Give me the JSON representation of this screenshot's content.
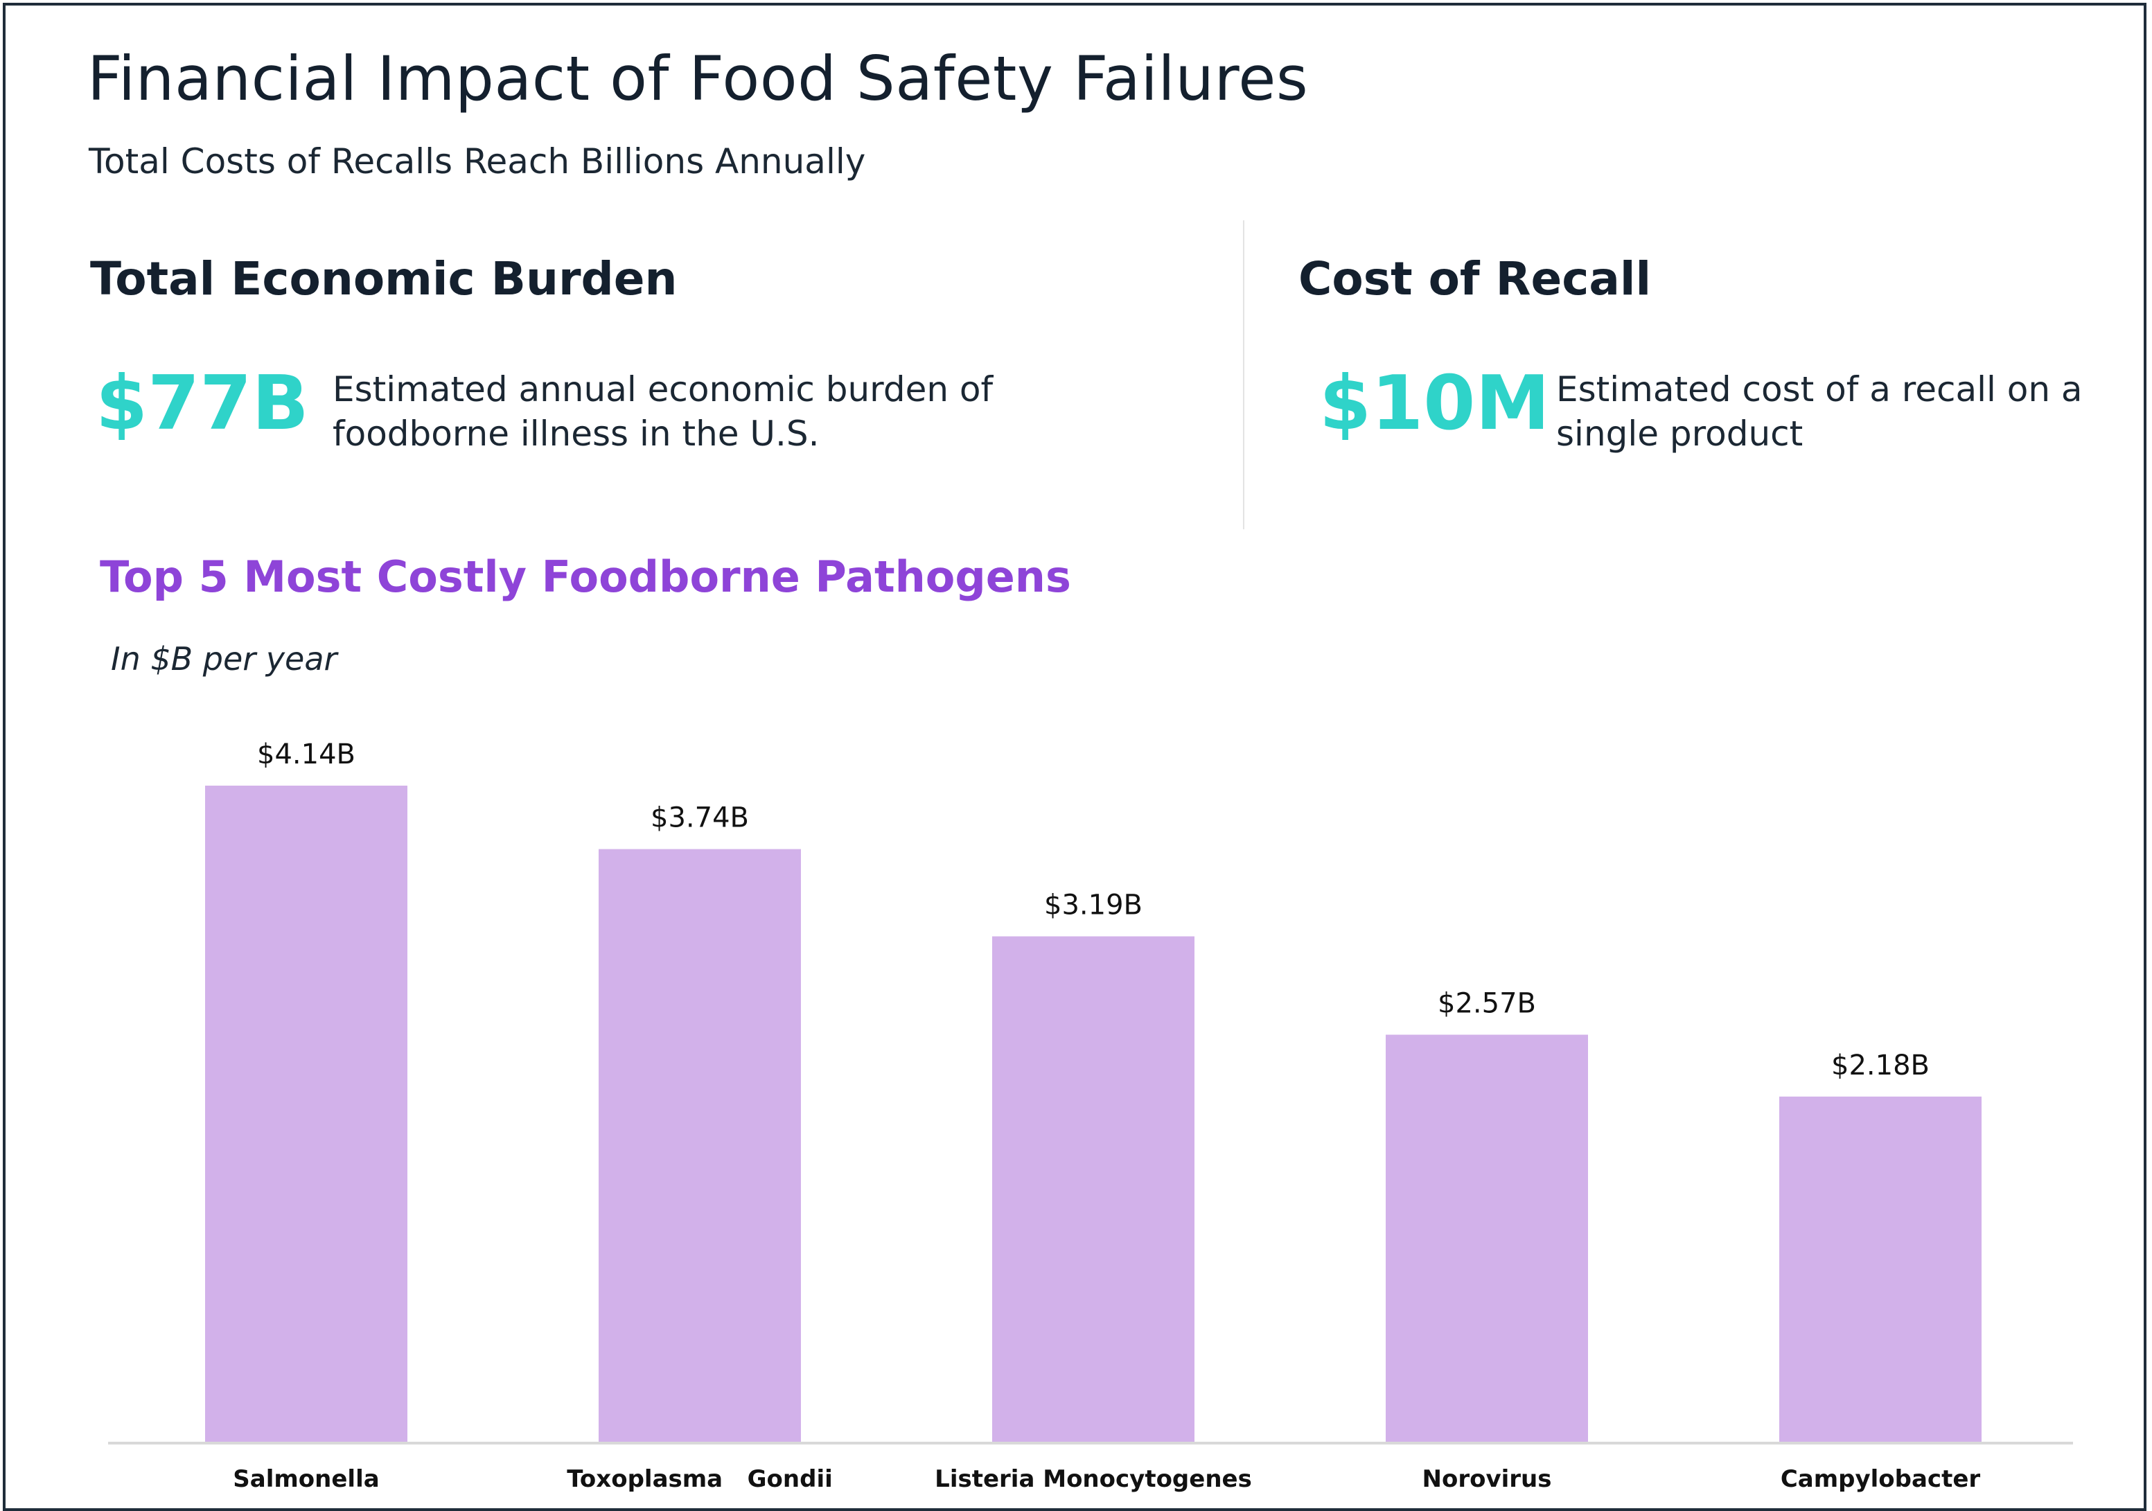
{
  "title": "Financial Impact of Food Safety Failures",
  "subtitle": "Total Costs of Recalls Reach Billions Annually",
  "panels": [
    {
      "heading": "Total Economic Burden",
      "value": "$77B",
      "description": "Estimated annual economic burden of foodborne illness in the U.S."
    },
    {
      "heading": "Cost of Recall",
      "value": "$10M",
      "description": "Estimated cost of a recall on a single product"
    }
  ],
  "colors": {
    "accent_teal": "#2fd3c9",
    "accent_purple": "#8e44d8",
    "bar_fill": "#d2b1ea",
    "text_dark": "#14202e"
  },
  "chart_data": {
    "type": "bar",
    "title": "Top 5 Most Costly Foodborne Pathogens",
    "unit_note": "In $B per year",
    "categories": [
      "Salmonella",
      "Toxoplasma   Gondii",
      "Listeria Monocytogenes",
      "Norovirus",
      "Campylobacter"
    ],
    "values": [
      4.14,
      3.74,
      3.19,
      2.57,
      2.18
    ],
    "data_labels": [
      "$4.14B",
      "$3.74B",
      "$3.19B",
      "$2.57B",
      "$2.18B"
    ],
    "xlabel": "",
    "ylabel": "",
    "ylim": [
      0,
      4.14
    ],
    "grid": false,
    "legend": "none"
  }
}
